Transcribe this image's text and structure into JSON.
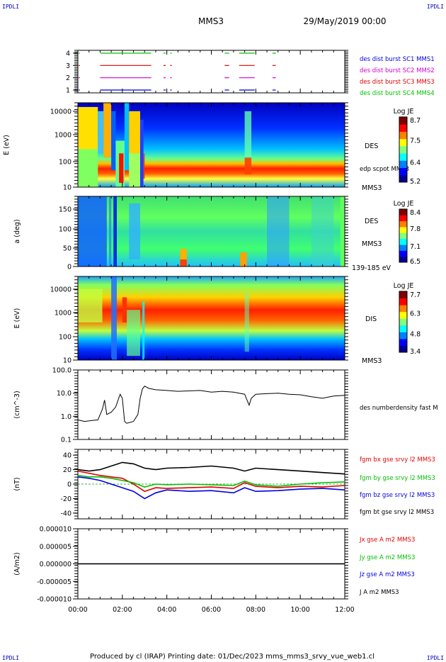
{
  "corners": {
    "top_left": "IPDLI",
    "top_right": "IPDLI",
    "bottom_left": "IPDLI",
    "bottom_right": "IPDLI"
  },
  "header": {
    "spacecraft": "MMS3",
    "date": "29/May/2019 00:00"
  },
  "footer": "Produced by cl (IRAP)   Printing date: 01/Dec/2023   mms_mms3_srvy_vue_web1.cl",
  "colors": {
    "red": "#e00000",
    "green": "#00c000",
    "blue": "#0000e0",
    "magenta": "#d000d0",
    "black": "#000000"
  },
  "chart_data": [
    {
      "type": "line",
      "id": "burst",
      "yticks": [
        "4",
        "3",
        "2",
        "1"
      ],
      "series": [
        {
          "name": "des dist burst SC1 MMS1",
          "color": "#0000e0",
          "level": 1,
          "segments": [
            [
              1.0,
              3.3
            ],
            [
              3.85,
              3.95
            ],
            [
              4.15,
              4.22
            ],
            [
              6.6,
              6.8
            ],
            [
              7.25,
              7.95
            ],
            [
              8.75,
              8.9
            ]
          ]
        },
        {
          "name": "des dist burst SC2 MMS2",
          "color": "#d000d0",
          "level": 2,
          "segments": [
            [
              1.0,
              3.3
            ],
            [
              3.85,
              3.95
            ],
            [
              4.15,
              4.22
            ],
            [
              6.6,
              6.8
            ],
            [
              7.25,
              7.95
            ],
            [
              8.75,
              8.9
            ]
          ]
        },
        {
          "name": "des dist burst SC3 MMS3",
          "color": "#e00000",
          "level": 3,
          "segments": [
            [
              1.0,
              3.3
            ],
            [
              3.85,
              3.95
            ],
            [
              4.15,
              4.22
            ],
            [
              6.6,
              6.8
            ],
            [
              7.25,
              7.95
            ],
            [
              8.75,
              8.9
            ]
          ]
        },
        {
          "name": "des dist burst SC4 MMS4",
          "color": "#00c000",
          "level": 4,
          "segments": [
            [
              1.0,
              3.3
            ],
            [
              3.85,
              3.95
            ],
            [
              4.15,
              4.22
            ],
            [
              6.6,
              6.8
            ],
            [
              7.25,
              7.95
            ],
            [
              8.75,
              8.9
            ]
          ]
        }
      ]
    },
    {
      "type": "heatmap",
      "id": "des_energy",
      "ylabel": "E (eV)",
      "yticks": [
        "10000",
        "1000",
        "100",
        "10"
      ],
      "labels": [
        "DES",
        "edp scpot MMS3",
        "MMS3"
      ],
      "colorbar": {
        "title": "Log JE",
        "ticks": [
          "8.7",
          "7.5",
          "6.4",
          "5.2"
        ]
      }
    },
    {
      "type": "heatmap",
      "id": "des_pitch",
      "ylabel": "a (deg)",
      "yticks": [
        "150",
        "100",
        "50",
        "0"
      ],
      "labels": [
        "DES",
        "MMS3",
        "139-185 eV"
      ],
      "colorbar": {
        "title": "Log JE",
        "ticks": [
          "8.4",
          "7.8",
          "7.1",
          "6.5"
        ]
      }
    },
    {
      "type": "heatmap",
      "id": "dis_energy",
      "ylabel": "E (eV)",
      "yticks": [
        "10000",
        "1000",
        "100",
        "10"
      ],
      "labels": [
        "DIS",
        "MMS3"
      ],
      "colorbar": {
        "title": "Log JE",
        "ticks": [
          "7.7",
          "6.3",
          "4.8",
          "3.4"
        ]
      }
    },
    {
      "type": "line",
      "id": "density",
      "ylabel": "(cm^-3)",
      "yticks": [
        "100.0",
        "10.0",
        "1.0",
        "0.1"
      ],
      "ylim": [
        0.1,
        100
      ],
      "yscale": "log",
      "series": [
        {
          "name": "des numberdensity fast M",
          "color": "#000000",
          "x": [
            0.0,
            0.3,
            0.6,
            0.9,
            1.1,
            1.2,
            1.3,
            1.5,
            1.7,
            1.9,
            2.0,
            2.1,
            2.2,
            2.5,
            2.7,
            2.8,
            2.9,
            3.0,
            3.2,
            3.5,
            4.0,
            4.5,
            5.0,
            5.5,
            6.0,
            6.5,
            7.0,
            7.5,
            7.7,
            7.8,
            8.0,
            8.5,
            9.0,
            9.5,
            10.0,
            10.5,
            11.0,
            11.5,
            12.0
          ],
          "y": [
            0.7,
            0.6,
            0.65,
            0.7,
            2.0,
            5.0,
            1.2,
            1.5,
            2.5,
            9.0,
            6.0,
            0.6,
            0.5,
            0.6,
            1.2,
            6.0,
            15.0,
            20.0,
            16.0,
            14.0,
            13.0,
            12.0,
            12.5,
            13.0,
            11.0,
            12.0,
            11.0,
            9.0,
            3.0,
            6.0,
            9.0,
            9.5,
            10.0,
            9.0,
            8.5,
            7.0,
            6.0,
            7.5,
            8.0
          ]
        }
      ]
    },
    {
      "type": "line",
      "id": "magnetic_field",
      "ylabel": "(nT)",
      "yticks": [
        "40",
        "20",
        "0",
        "-20",
        "-40"
      ],
      "ylim": [
        -48,
        48
      ],
      "series": [
        {
          "name": "fgm bx gse srvy l2 MMS3",
          "color": "#e00000",
          "x": [
            0,
            0.5,
            1.0,
            1.5,
            2.0,
            2.5,
            3.0,
            3.5,
            4.0,
            5.0,
            6.0,
            7.0,
            7.5,
            8.0,
            9.0,
            10.0,
            11.0,
            12.0
          ],
          "y": [
            18,
            15,
            12,
            10,
            8,
            0,
            -10,
            -5,
            -6,
            -5,
            -4,
            -6,
            2,
            -3,
            -5,
            -3,
            -4,
            -2
          ]
        },
        {
          "name": "fgm by gse srvy l2 MMS3",
          "color": "#00c000",
          "x": [
            0,
            0.5,
            1.0,
            1.5,
            2.0,
            2.5,
            3.0,
            3.5,
            4.0,
            5.0,
            6.0,
            7.0,
            7.5,
            8.0,
            9.0,
            10.0,
            11.0,
            12.0
          ],
          "y": [
            12,
            10,
            10,
            8,
            5,
            2,
            -4,
            0,
            -1,
            0,
            -1,
            -2,
            4,
            -1,
            -3,
            0,
            2,
            3
          ]
        },
        {
          "name": "fgm bz gse srvy l2 MMS3",
          "color": "#0000e0",
          "x": [
            0,
            0.5,
            1.0,
            1.5,
            2.0,
            2.5,
            3.0,
            3.5,
            4.0,
            5.0,
            6.0,
            7.0,
            7.5,
            8.0,
            9.0,
            10.0,
            11.0,
            12.0
          ],
          "y": [
            10,
            8,
            5,
            0,
            -5,
            -10,
            -20,
            -12,
            -8,
            -10,
            -9,
            -12,
            -5,
            -10,
            -9,
            -7,
            -6,
            -8
          ]
        },
        {
          "name": "fgm bt gse srvy l2 MMS3",
          "color": "#000000",
          "x": [
            0,
            0.5,
            1.0,
            1.5,
            2.0,
            2.5,
            3.0,
            3.5,
            4.0,
            5.0,
            6.0,
            7.0,
            7.5,
            8.0,
            9.0,
            10.0,
            11.0,
            12.0
          ],
          "y": [
            20,
            18,
            20,
            25,
            30,
            28,
            22,
            20,
            22,
            23,
            25,
            22,
            18,
            22,
            20,
            18,
            16,
            14
          ]
        }
      ]
    },
    {
      "type": "line",
      "id": "current",
      "ylabel": "(A/m2)",
      "yticks": [
        "0.000010",
        "0.000005",
        "0.000000",
        "-0.000005",
        "-0.000010"
      ],
      "ylim": [
        -1e-05,
        1e-05
      ],
      "series": [
        {
          "name": "Jx gse A m2 MMS3",
          "color": "#e00000",
          "x": [
            0,
            12
          ],
          "y": [
            0,
            0
          ]
        },
        {
          "name": "Jy gse A m2 MMS3",
          "color": "#00c000",
          "x": [
            0,
            12
          ],
          "y": [
            0,
            0
          ]
        },
        {
          "name": "Jz gse A m2 MMS3",
          "color": "#0000e0",
          "x": [
            0,
            12
          ],
          "y": [
            0,
            0
          ]
        },
        {
          "name": "J A m2 MMS3",
          "color": "#000000",
          "x": [
            0,
            12
          ],
          "y": [
            0,
            0
          ]
        }
      ]
    }
  ],
  "xaxis": {
    "ticks": [
      "00:00",
      "02:00",
      "04:00",
      "06:00",
      "08:00",
      "10:00",
      "12:00"
    ],
    "range_hours": [
      0,
      12
    ]
  }
}
